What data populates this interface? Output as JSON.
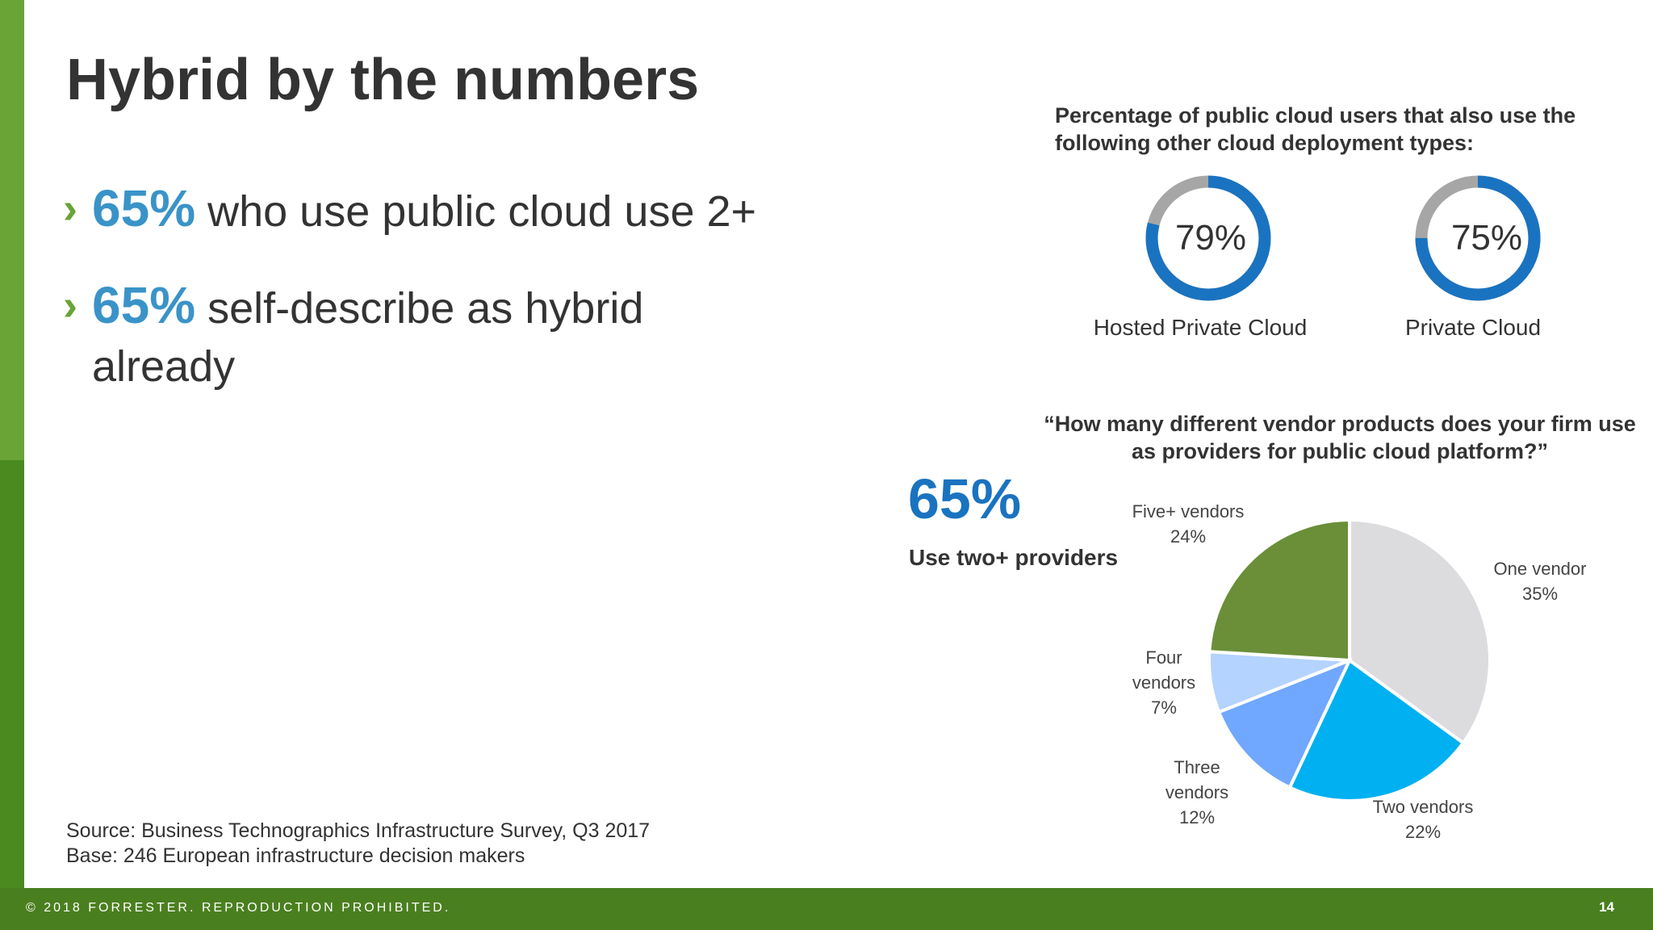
{
  "slide": {
    "title": "Hybrid by the numbers",
    "bullets": [
      {
        "value": "65%",
        "text": "who use public cloud use 2+"
      },
      {
        "value": "65%",
        "text": "self-describe as hybrid already"
      }
    ],
    "source": "Source: Business Technographics Infrastructure Survey, Q3 2017",
    "base": "Base: 246 European infrastructure decision makers",
    "footer": {
      "copyright": "© 2018 FORRESTER. REPRODUCTION PROHIBITED.",
      "page_number": "14"
    },
    "highlight": {
      "value": "65%",
      "label": "Use two+ providers"
    },
    "colors": {
      "accent_green": "#6aa436",
      "dark_green": "#4a7f1f",
      "stat_blue": "#3a93c8",
      "donut_blue": "#1a73c0",
      "donut_gray": "#a6a6a6"
    }
  },
  "chart_data": [
    {
      "type": "donut",
      "title": "Percentage of public cloud users that also use the following other cloud deployment types:",
      "items": [
        {
          "label": "Hosted Private Cloud",
          "value": 79,
          "display": "79%"
        },
        {
          "label": "Private Cloud",
          "value": 75,
          "display": "75%"
        }
      ]
    },
    {
      "type": "pie",
      "title": "“How many different vendor products does your firm use as providers for public cloud platform?”",
      "slices": [
        {
          "label": "One vendor",
          "value": 35,
          "display": "35%",
          "color": "#dcdcdf"
        },
        {
          "label": "Two vendors",
          "value": 22,
          "display": "22%",
          "color": "#00b0f0"
        },
        {
          "label": "Three vendors",
          "value": 12,
          "display": "12%",
          "color": "#70a7ff"
        },
        {
          "label": "Four vendors",
          "value": 7,
          "display": "7%",
          "color": "#b4d3ff"
        },
        {
          "label": "Five+ vendors",
          "value": 24,
          "display": "24%",
          "color": "#6a8f38"
        }
      ]
    }
  ]
}
